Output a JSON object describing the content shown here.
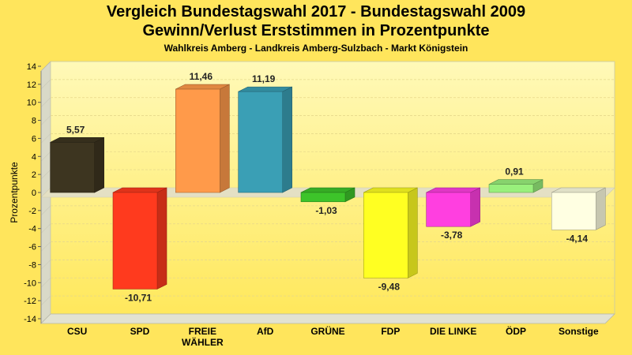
{
  "title_line1": "Vergleich Bundestagswahl 2017 - Bundestagswahl 2009",
  "title_line2": "Gewinn/Verlust Erststimmen in Prozentpunkte",
  "subtitle": "Wahlkreis Amberg - Landkreis Amberg-Sulzbach - Markt Königstein",
  "colors": {
    "background": "#FFE55C",
    "plot_top": "#FFF9B8",
    "plot_bottom": "#FFE85C"
  },
  "chart_data": {
    "type": "bar",
    "categories": [
      "CSU",
      "SPD",
      "FREIE WÄHLER",
      "AfD",
      "GRÜNE",
      "FDP",
      "DIE LINKE",
      "ÖDP",
      "Sonstige"
    ],
    "category_lines": [
      [
        "CSU"
      ],
      [
        "SPD"
      ],
      [
        "FREIE",
        "WÄHLER"
      ],
      [
        "AfD"
      ],
      [
        "GRÜNE"
      ],
      [
        "FDP"
      ],
      [
        "DIE LINKE"
      ],
      [
        "ÖDP"
      ],
      [
        "Sonstige"
      ]
    ],
    "values": [
      5.57,
      -10.71,
      11.46,
      11.19,
      -1.03,
      -9.48,
      -3.78,
      0.91,
      -4.14
    ],
    "value_labels": [
      "5,57",
      "-10,71",
      "11,46",
      "11,19",
      "-1,03",
      "-9,48",
      "-3,78",
      "0,91",
      "-4,14"
    ],
    "bar_colors": [
      "#3D3520",
      "#FF3A1E",
      "#FF9A4A",
      "#3A9FB5",
      "#3DC42A",
      "#FFFF22",
      "#FF3FE0",
      "#99F07C",
      "#FFFFE2"
    ],
    "xlabel": "",
    "ylabel": "Prozentpunkte",
    "ylim": [
      -14,
      14
    ],
    "yticks": [
      14,
      12,
      10,
      8,
      6,
      4,
      2,
      0,
      -2,
      -4,
      -6,
      -8,
      -10,
      -12,
      -14
    ],
    "grid": true,
    "legend": "none"
  }
}
